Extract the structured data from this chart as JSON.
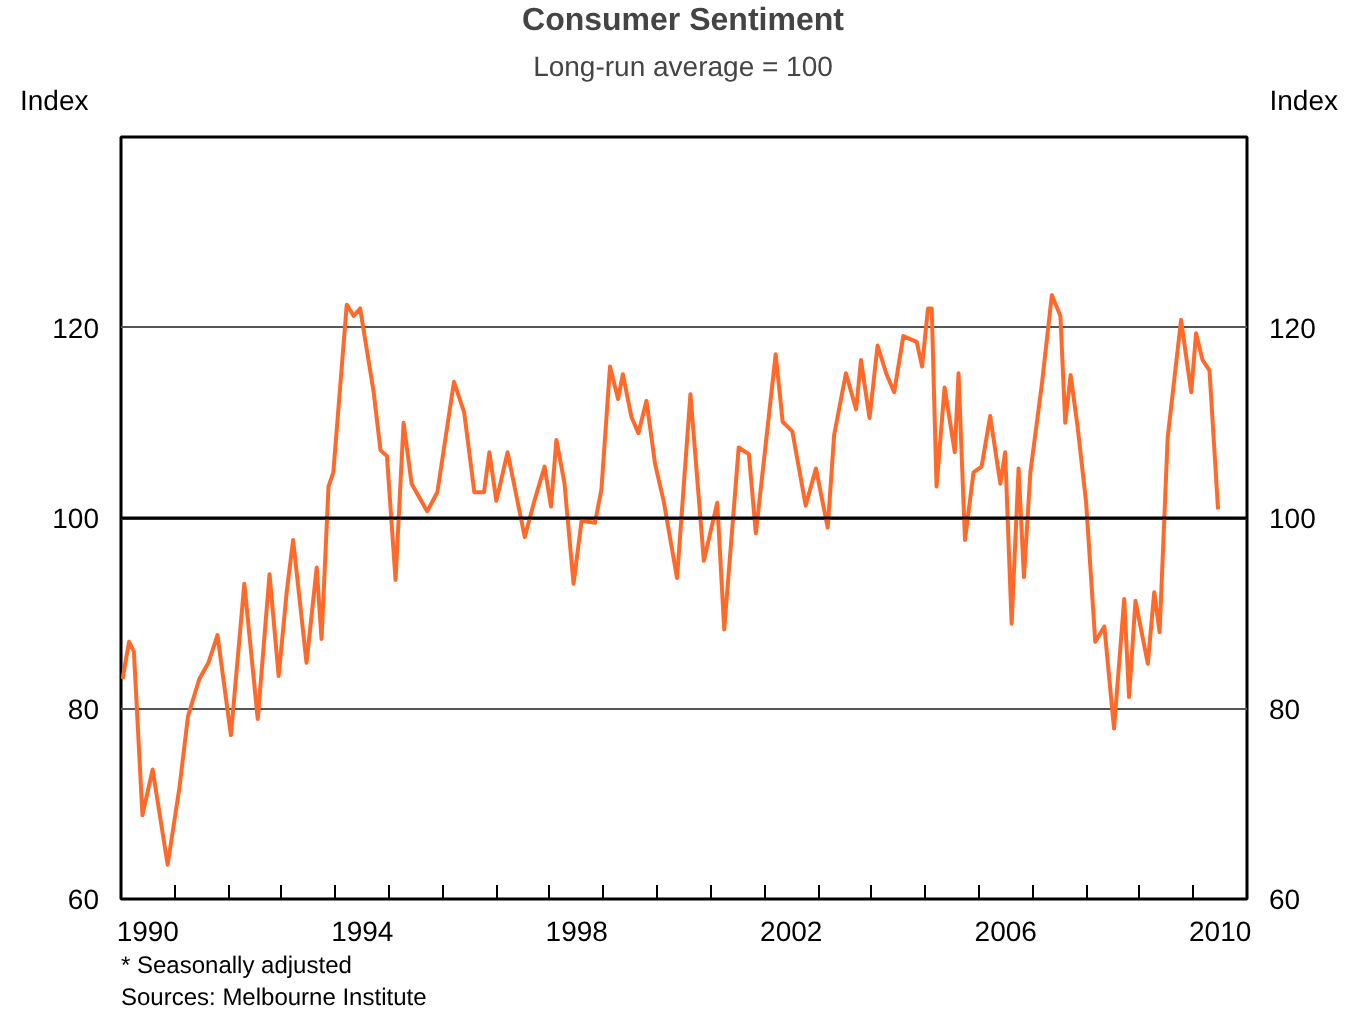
{
  "chart_data": {
    "type": "line",
    "title": "Consumer Sentiment",
    "subtitle": "Long-run average = 100",
    "ylabel": "Index",
    "y2label": "Index",
    "annotations": [
      "*   Seasonally adjusted",
      "Sources: Melbourne Institute"
    ],
    "xlim": [
      1990,
      2011
    ],
    "ylim": [
      60,
      140
    ],
    "y2lim": [
      60,
      140
    ],
    "xticks": [
      {
        "value": 1990.5,
        "label": "1990"
      },
      {
        "value": 1994.5,
        "label": "1994"
      },
      {
        "value": 1998.5,
        "label": "1998"
      },
      {
        "value": 2002.5,
        "label": "2002"
      },
      {
        "value": 2006.5,
        "label": "2006"
      },
      {
        "value": 2010.5,
        "label": "2010"
      },
      {
        "value": 1991,
        "label": null
      },
      {
        "value": 1992,
        "label": null
      },
      {
        "value": 1993,
        "label": null
      },
      {
        "value": 1994,
        "label": null
      },
      {
        "value": 1995,
        "label": null
      },
      {
        "value": 1996,
        "label": null
      },
      {
        "value": 1997,
        "label": null
      },
      {
        "value": 1998,
        "label": null
      },
      {
        "value": 1999,
        "label": null
      },
      {
        "value": 2000,
        "label": null
      },
      {
        "value": 2001,
        "label": null
      },
      {
        "value": 2002,
        "label": null
      },
      {
        "value": 2003,
        "label": null
      },
      {
        "value": 2004,
        "label": null
      },
      {
        "value": 2005,
        "label": null
      },
      {
        "value": 2006,
        "label": null
      },
      {
        "value": 2007,
        "label": null
      },
      {
        "value": 2008,
        "label": null
      },
      {
        "value": 2009,
        "label": null
      },
      {
        "value": 2010,
        "label": null
      }
    ],
    "yticks": [
      60,
      80,
      100,
      120
    ],
    "y2ticks": [
      60,
      80,
      100,
      120
    ],
    "grid": "y",
    "marker": "none",
    "line_style": "solid",
    "ref_lines": [
      {
        "axis": "y",
        "value": 100,
        "color": "#000000"
      }
    ],
    "series": [
      {
        "color": "#ff6a2a",
        "x": [
          1990.03,
          1990.15,
          1990.24,
          1990.4,
          1990.59,
          1990.87,
          1991.09,
          1991.25,
          1991.46,
          1991.63,
          1991.8,
          1992.05,
          1992.3,
          1992.55,
          1992.77,
          1992.94,
          1993.09,
          1993.21,
          1993.46,
          1993.65,
          1993.74,
          1993.87,
          1993.96,
          1994.21,
          1994.34,
          1994.46,
          1994.71,
          1994.84,
          1994.96,
          1995.12,
          1995.27,
          1995.42,
          1995.71,
          1995.9,
          1996.21,
          1996.4,
          1996.59,
          1996.77,
          1996.87,
          1997.0,
          1997.21,
          1997.53,
          1997.71,
          1997.9,
          1998.02,
          1998.12,
          1998.27,
          1998.44,
          1998.59,
          1998.84,
          1998.96,
          1999.12,
          1999.27,
          1999.36,
          1999.52,
          1999.65,
          1999.8,
          1999.96,
          2000.12,
          2000.37,
          2000.62,
          2000.87,
          2001.12,
          2001.25,
          2001.52,
          2001.71,
          2001.84,
          2002.21,
          2002.34,
          2002.52,
          2002.77,
          2002.96,
          2003.18,
          2003.3,
          2003.52,
          2003.71,
          2003.8,
          2003.96,
          2004.11,
          2004.27,
          2004.42,
          2004.59,
          2004.84,
          2004.94,
          2005.05,
          2005.12,
          2005.21,
          2005.36,
          2005.55,
          2005.62,
          2005.74,
          2005.9,
          2006.05,
          2006.21,
          2006.4,
          2006.49,
          2006.61,
          2006.74,
          2006.84,
          2006.96,
          2007.18,
          2007.36,
          2007.52,
          2007.61,
          2007.71,
          2007.84,
          2008.0,
          2008.17,
          2008.34,
          2008.52,
          2008.71,
          2008.8,
          2008.92,
          2009.15,
          2009.27,
          2009.37,
          2009.52,
          2009.77,
          2009.96,
          2010.05,
          2010.17,
          2010.3,
          2010.46
        ],
        "values": [
          83.1,
          87.0,
          86.0,
          68.8,
          73.6,
          63.6,
          71.7,
          79.2,
          83.1,
          84.8,
          87.7,
          77.2,
          93.1,
          78.9,
          94.1,
          83.4,
          92.2,
          97.7,
          84.8,
          94.8,
          87.3,
          103.3,
          104.8,
          122.4,
          121.2,
          122.0,
          113.3,
          107.1,
          106.5,
          93.5,
          110.0,
          103.6,
          100.7,
          102.7,
          114.3,
          111.1,
          102.7,
          102.7,
          106.9,
          101.8,
          106.9,
          98.0,
          101.8,
          105.4,
          101.2,
          108.2,
          103.7,
          93.1,
          99.7,
          99.5,
          103.0,
          115.9,
          112.5,
          115.1,
          110.6,
          108.9,
          112.3,
          105.7,
          101.8,
          93.7,
          113.0,
          95.5,
          101.6,
          88.3,
          107.4,
          106.7,
          98.4,
          117.2,
          110.1,
          109.1,
          101.3,
          105.2,
          99.0,
          108.7,
          115.2,
          111.4,
          116.6,
          110.5,
          118.1,
          115.2,
          113.2,
          119.1,
          118.5,
          115.9,
          122.0,
          122.0,
          103.3,
          113.7,
          106.9,
          115.2,
          97.7,
          104.8,
          105.4,
          110.7,
          103.6,
          106.9,
          88.9,
          105.2,
          93.8,
          104.8,
          114.3,
          123.4,
          121.2,
          110.0,
          115.0,
          109.6,
          101.6,
          87.0,
          88.6,
          77.9,
          91.5,
          81.2,
          91.3,
          84.7,
          92.2,
          88.0,
          108.4,
          120.8,
          113.2,
          119.4,
          116.6,
          115.5,
          100.9
        ]
      }
    ]
  }
}
